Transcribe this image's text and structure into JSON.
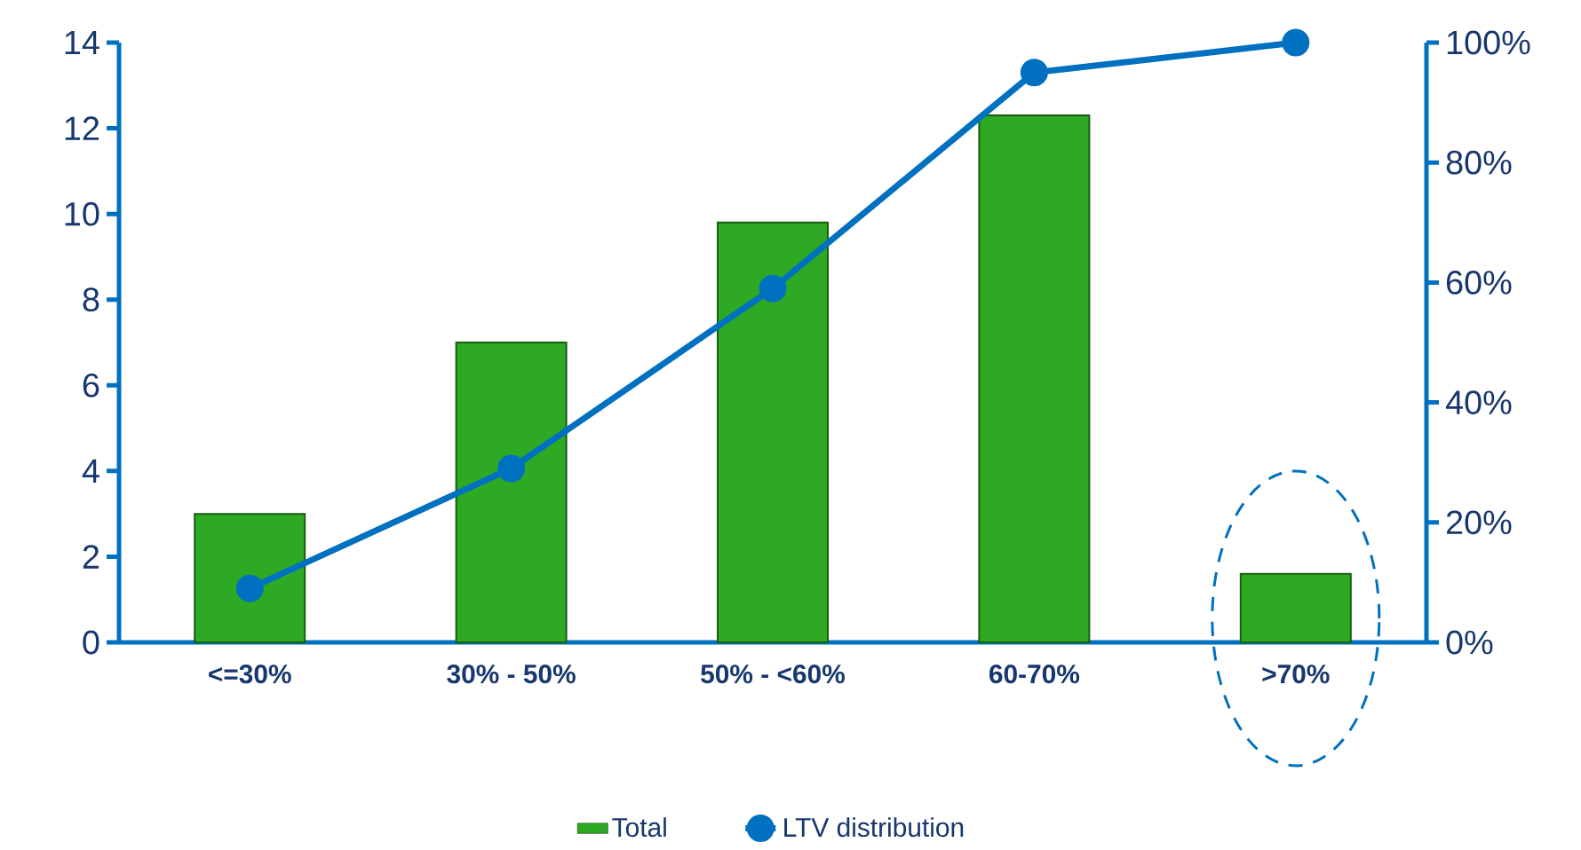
{
  "chart_data": {
    "type": "bar",
    "categories": [
      "<=30%",
      "30% - 50%",
      "50% - <60%",
      "60-70%",
      ">70%"
    ],
    "series": [
      {
        "name": "Total",
        "color": "#2ea923",
        "values": [
          3,
          7,
          9.8,
          12.3,
          1.6
        ]
      },
      {
        "name": "LTV distribution",
        "type": "line",
        "axis": "y2",
        "color": "#0070c0",
        "marker": "circle",
        "values": [
          9,
          29,
          59,
          95,
          100
        ]
      }
    ],
    "ylim": [
      0,
      14
    ],
    "yticks": [
      0,
      2,
      4,
      6,
      8,
      10,
      12,
      14
    ],
    "y2lim": [
      0,
      100
    ],
    "y2ticks": [
      {
        "value": 0,
        "label": "0%"
      },
      {
        "value": 20,
        "label": "20%"
      },
      {
        "value": 40,
        "label": "40%"
      },
      {
        "value": 60,
        "label": "60%"
      },
      {
        "value": 80,
        "label": "80%"
      },
      {
        "value": 100,
        "label": "100%"
      }
    ],
    "grid": false,
    "legend": "bottom"
  }
}
